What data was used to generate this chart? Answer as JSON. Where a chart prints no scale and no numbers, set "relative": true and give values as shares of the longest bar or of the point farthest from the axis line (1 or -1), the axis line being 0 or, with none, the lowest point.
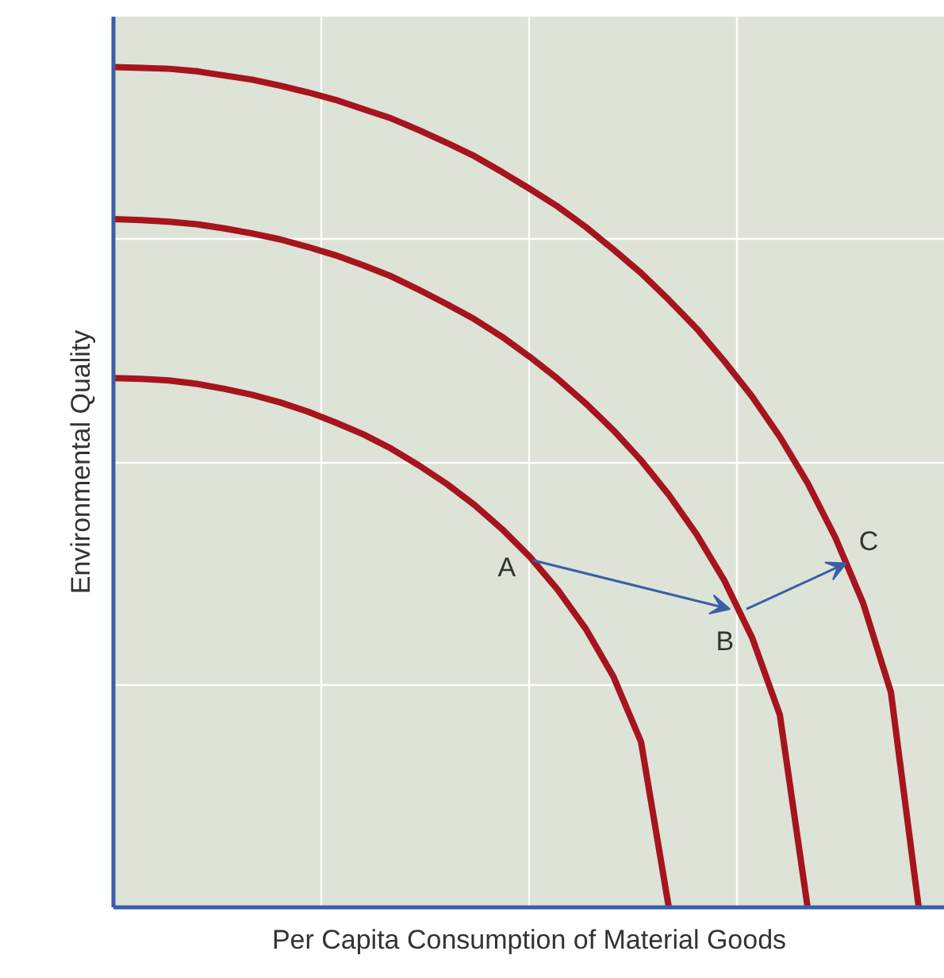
{
  "chart_data": {
    "type": "line",
    "relative": true,
    "xlabel": "Per Capita Consumption of Material Goods",
    "ylabel": "Environmental Quality",
    "grid": true,
    "marker": "none",
    "line_style": "solid",
    "categories": [
      null,
      null,
      null,
      null,
      null,
      null,
      null,
      null,
      null,
      null,
      null,
      null,
      null,
      null,
      null,
      null,
      null,
      null,
      null,
      null,
      null,
      null,
      null,
      null,
      null,
      null,
      null,
      null,
      null,
      null
    ],
    "series": [
      {
        "color": "#a6141e",
        "values": [
          0.63,
          0.629,
          0.627,
          0.623,
          0.617,
          0.61,
          0.601,
          0.59,
          0.577,
          0.563,
          0.546,
          0.526,
          0.504,
          0.479,
          0.45,
          0.417,
          0.378,
          0.332,
          0.275,
          0.197,
          0,
          null,
          null,
          null,
          null,
          null,
          null,
          null,
          null,
          null
        ]
      },
      {
        "color": "#a6141e",
        "values": [
          0.819,
          0.818,
          0.816,
          0.813,
          0.808,
          0.802,
          0.795,
          0.786,
          0.776,
          0.764,
          0.751,
          0.735,
          0.718,
          0.7,
          0.679,
          0.655,
          0.629,
          0.6,
          0.568,
          0.532,
          0.491,
          0.444,
          0.389,
          0.321,
          0.229,
          0,
          null,
          null,
          null,
          null
        ]
      },
      {
        "color": "#a6141e",
        "values": [
          1,
          0.999,
          0.998,
          0.995,
          0.99,
          0.985,
          0.978,
          0.97,
          0.961,
          0.95,
          0.939,
          0.925,
          0.91,
          0.894,
          0.875,
          0.855,
          0.834,
          0.81,
          0.783,
          0.755,
          0.723,
          0.689,
          0.65,
          0.608,
          0.56,
          0.505,
          0.44,
          0.362,
          0.256,
          0
        ]
      }
    ],
    "annotations": [
      "A",
      "B",
      "C"
    ]
  }
}
